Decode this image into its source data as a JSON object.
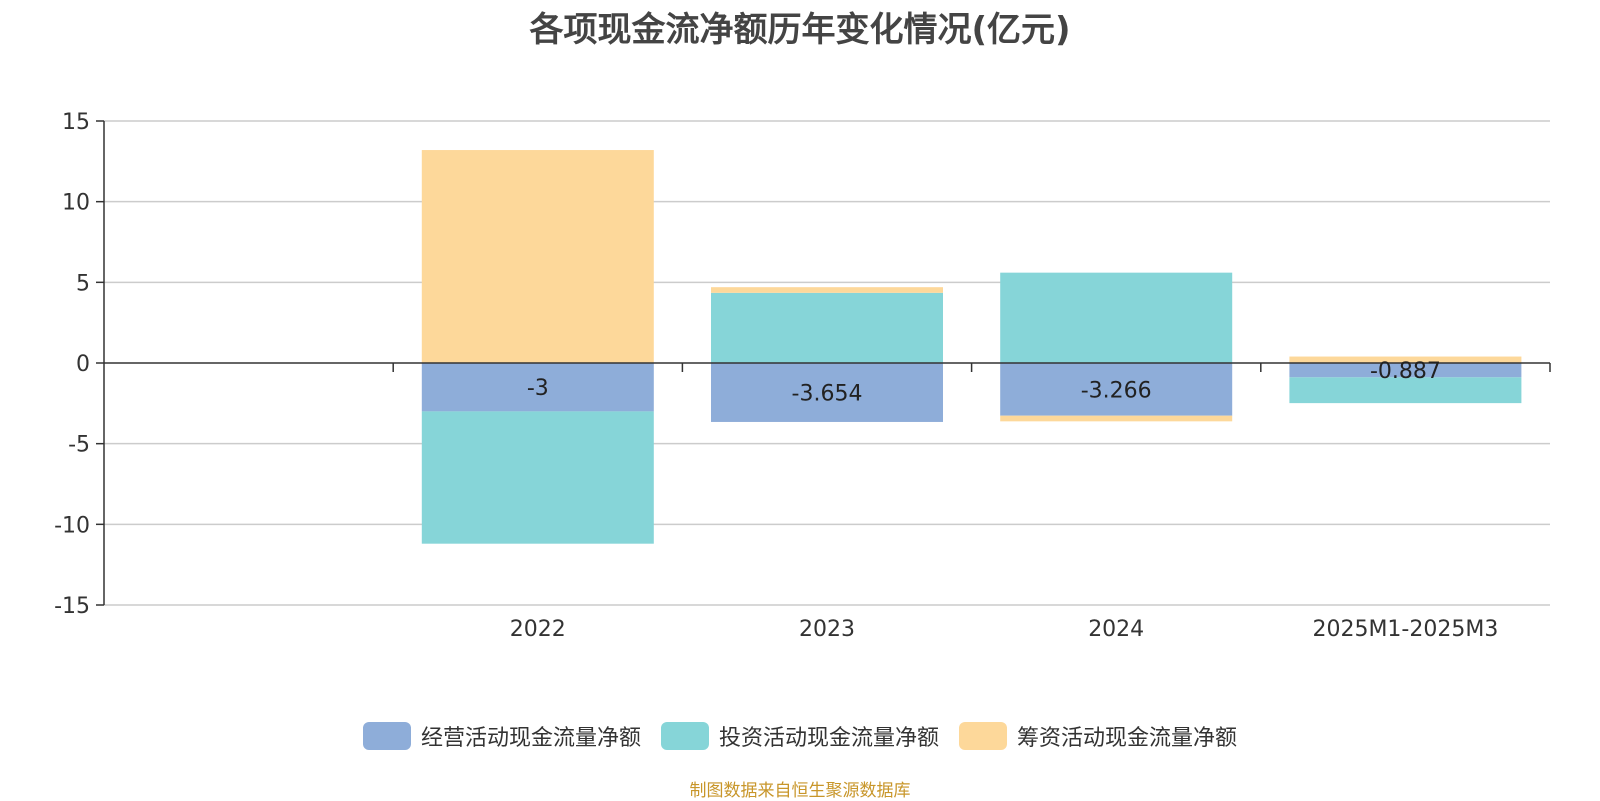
{
  "title": "各项现金流净额历年变化情况(亿元)",
  "source_note": "制图数据来自恒生聚源数据库",
  "chart_data": {
    "type": "bar",
    "stacked": true,
    "title": "各项现金流净额历年变化情况(亿元)",
    "xlabel": "",
    "ylabel": "",
    "ylim": [
      -15,
      15
    ],
    "yticks": [
      15,
      10,
      5,
      0,
      -5,
      -10,
      -15
    ],
    "grid": true,
    "legend_position": "bottom",
    "categories": [
      "",
      "2022",
      "2023",
      "2024",
      "2025M1-2025M3"
    ],
    "series": [
      {
        "name": "经营活动现金流量净额",
        "color": "#8eadd9",
        "values": [
          null,
          -3,
          -3.654,
          -3.266,
          -0.887
        ],
        "labels": [
          "",
          "-3",
          "-3.654",
          "-3.266",
          "-0.887"
        ]
      },
      {
        "name": "投资活动现金流量净额",
        "color": "#86d5d8",
        "values": [
          null,
          -8.2,
          4.35,
          5.6,
          -1.6
        ]
      },
      {
        "name": "筹资活动现金流量净额",
        "color": "#fdd89a",
        "values": [
          null,
          13.2,
          0.35,
          -0.35,
          0.4
        ]
      }
    ]
  }
}
